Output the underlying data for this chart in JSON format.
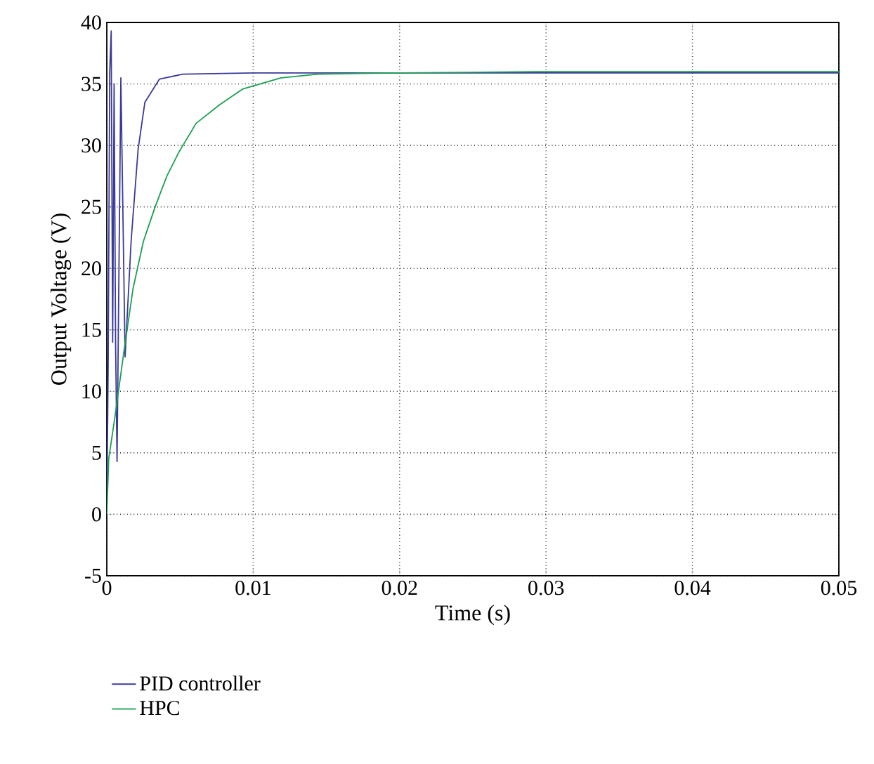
{
  "chart_data": {
    "type": "line",
    "xlabel": "Time (s)",
    "ylabel": "Output Voltage (V)",
    "xlim": [
      0,
      0.05
    ],
    "ylim": [
      -5,
      40
    ],
    "xticks": [
      0,
      0.01,
      0.02,
      0.03,
      0.04,
      0.05
    ],
    "yticks": [
      -5,
      0,
      5,
      10,
      15,
      20,
      25,
      30,
      35,
      40
    ],
    "grid": true,
    "legend": "bottom left",
    "line_style": "solid",
    "marker": "none",
    "series": [
      {
        "name": "PID controller",
        "color": "#3a3a9a",
        "x": [
          0,
          0.0001,
          0.0002,
          0.0003,
          0.0004,
          0.0005,
          0.0006,
          0.0007,
          0.00096,
          0.00125,
          0.00166,
          0.00214,
          0.0026,
          0.0036,
          0.0052,
          0.01,
          0.02,
          0.03,
          0.04,
          0.05
        ],
        "values": [
          0,
          13,
          36,
          39.3,
          14,
          35,
          14,
          4.3,
          35.5,
          12.8,
          22.2,
          29.7,
          33.5,
          35.4,
          35.8,
          35.9,
          35.9,
          35.9,
          35.9,
          35.9
        ]
      },
      {
        "name": "HPC",
        "color": "#1aa050",
        "x": [
          0,
          0.00013,
          0.00054,
          0.0012,
          0.0018,
          0.0025,
          0.0033,
          0.0041,
          0.0049,
          0.0061,
          0.0077,
          0.0093,
          0.0119,
          0.0144,
          0.02,
          0.03,
          0.04,
          0.05
        ],
        "values": [
          0,
          4.5,
          7.8,
          13.5,
          18.4,
          22.2,
          25,
          27.5,
          29.4,
          31.8,
          33.3,
          34.6,
          35.5,
          35.8,
          35.9,
          36,
          36,
          36
        ]
      }
    ]
  }
}
